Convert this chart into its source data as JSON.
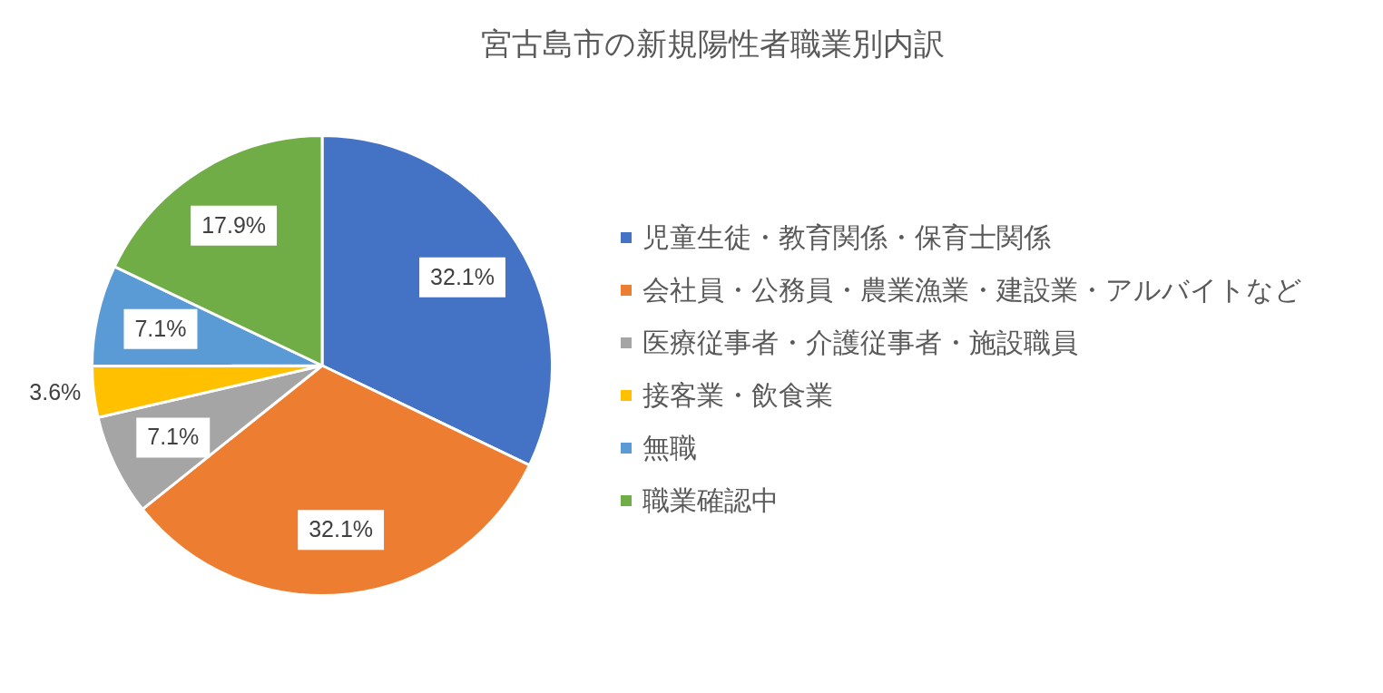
{
  "chart_data": {
    "type": "pie",
    "title": "宮古島市の新規陽性者職業別内訳",
    "categories": [
      "児童生徒・教育関係・保育士関係",
      "会社員・公務員・農業漁業・建設業・アルバイトなど",
      "医療従事者・介護従事者・施設職員",
      "接客業・飲食業",
      "無職",
      "職業確認中"
    ],
    "values": [
      32.1,
      32.1,
      7.1,
      3.6,
      7.1,
      17.9
    ],
    "colors": [
      "#4472c4",
      "#ed7d31",
      "#a5a5a5",
      "#ffc000",
      "#5b9bd5",
      "#70ad47"
    ],
    "value_labels": [
      "32.1%",
      "32.1%",
      "7.1%",
      "3.6%",
      "7.1%",
      "17.9%"
    ],
    "legend": "right"
  }
}
